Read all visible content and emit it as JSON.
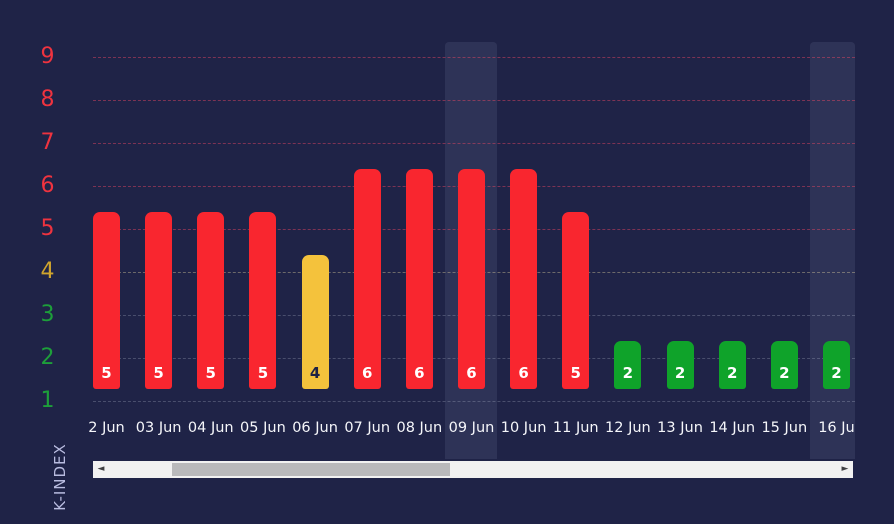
{
  "chart_data": {
    "type": "bar",
    "title": "",
    "xlabel": "",
    "ylabel": "K-INDEX",
    "categories": [
      "2 Jun",
      "03 Jun",
      "04 Jun",
      "05 Jun",
      "06 Jun",
      "07 Jun",
      "08 Jun",
      "09 Jun",
      "10 Jun",
      "11 Jun",
      "12 Jun",
      "13 Jun",
      "14 Jun",
      "15 Jun",
      "16 Ju"
    ],
    "values": [
      5,
      5,
      5,
      5,
      4,
      6,
      6,
      6,
      6,
      5,
      2,
      2,
      2,
      2,
      2
    ],
    "yticks": [
      1,
      2,
      3,
      4,
      5,
      6,
      7,
      8,
      9
    ],
    "ylim": [
      1,
      9
    ],
    "grid": true,
    "legend": false,
    "highlighted_columns": [
      "09 Jun",
      "16 Ju"
    ],
    "severity_rule": "values 1-3 green (quiet), 4 yellow (moderate), 5-9 red (storm)"
  },
  "colors": {
    "background": "#1f2347",
    "bar_green": "#0fa32a",
    "bar_yellow": "#f4c23c",
    "bar_red": "#f9262f",
    "tick_green": "#1d9f3a",
    "tick_yellow": "#cfa42d",
    "tick_red": "#ef333f",
    "bar_label_light": "#ffffff",
    "bar_label_dark": "#1e2244",
    "x_label": "#f5f6fa",
    "axis_title": "#b9bce0",
    "scrollbar_track": "#f1f1f1",
    "scrollbar_thumb": "#b9b9bb"
  },
  "scrollbar": {
    "left_glyph": "◄",
    "right_glyph": "►"
  }
}
